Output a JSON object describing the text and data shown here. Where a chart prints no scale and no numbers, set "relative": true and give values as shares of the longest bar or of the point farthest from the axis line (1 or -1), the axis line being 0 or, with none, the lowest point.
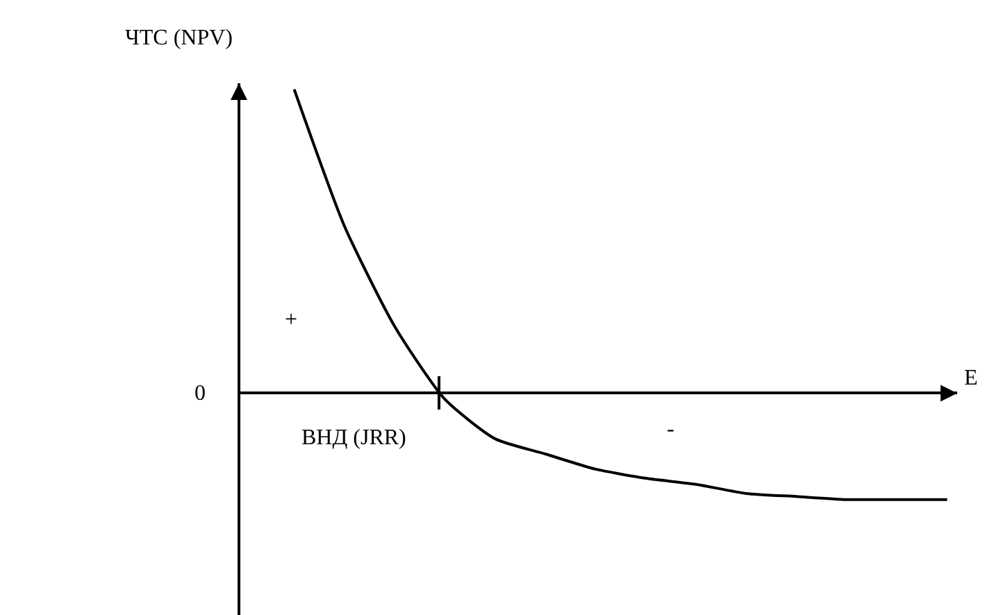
{
  "chart_data": {
    "type": "line",
    "relative": true,
    "xlabel": "E",
    "ylabel": "ЧТС (NPV)",
    "color": "#000000",
    "categories": [
      null,
      null,
      null,
      null,
      null,
      null,
      null,
      null,
      null,
      null,
      null,
      null,
      null,
      null
    ],
    "values": [
      1.0,
      0.55,
      0.22,
      -0.02,
      -0.15,
      -0.2,
      -0.25,
      -0.28,
      -0.3,
      -0.33,
      -0.34,
      -0.35,
      -0.35,
      -0.35
    ],
    "annotations": [
      "0",
      "+",
      "ВНД (JRR)",
      "-"
    ]
  }
}
